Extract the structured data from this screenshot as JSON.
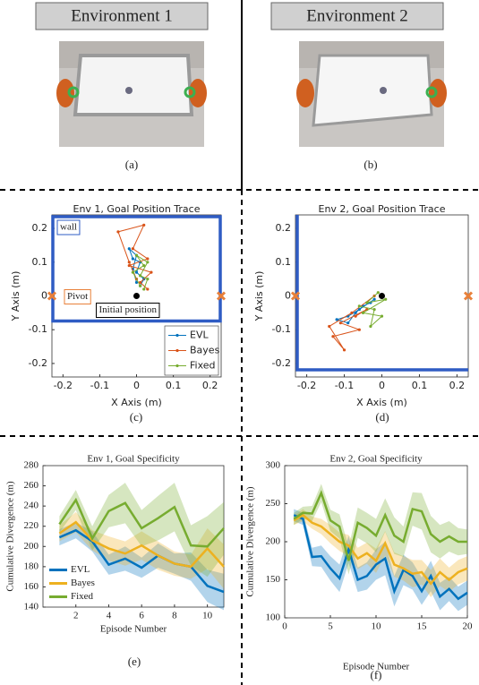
{
  "headers": [
    "Environment 1",
    "Environment 2"
  ],
  "captions": [
    "(a)",
    "(b)",
    "(c)",
    "(d)",
    "(e)",
    "(f)"
  ],
  "chart_data": [
    {
      "type": "line",
      "title": "Env 1, Goal Position Trace",
      "x_label": "X Axis (m)",
      "y_label": "Y Axis (m)",
      "xlim": [
        -0.23,
        0.23
      ],
      "ylim": [
        -0.24,
        0.24
      ],
      "xticks": [
        -0.2,
        -0.1,
        0,
        0.1,
        0.2
      ],
      "yticks": [
        -0.2,
        -0.1,
        0,
        0.1,
        0.2
      ],
      "legend": "lower right",
      "markers_on_lines": true,
      "annotations": [
        "wall",
        "Pivot",
        "Initial position"
      ],
      "points": [
        {
          "x": -0.23,
          "y": 0,
          "color": "#e8803a",
          "shape": "x"
        },
        {
          "x": 0.23,
          "y": 0,
          "color": "#e8803a",
          "shape": "x"
        },
        {
          "x": 0,
          "y": 0,
          "color": "#000000",
          "shape": "dot"
        }
      ],
      "series": [
        {
          "name": "EVL",
          "color": "#0072bd",
          "x": [
            0,
            -0.01,
            0,
            -0.02,
            -0.01,
            0.01,
            0,
            0.02,
            0.01
          ],
          "values": [
            0.04,
            0.08,
            0.12,
            0.14,
            0.11,
            0.1,
            0.07,
            0.05,
            0.03
          ]
        },
        {
          "name": "Bayes",
          "color": "#d95319",
          "x": [
            0,
            -0.02,
            -0.05,
            0.02,
            -0.01,
            0.03,
            -0.02,
            0.04,
            0.01,
            0.03
          ],
          "values": [
            0.05,
            0.1,
            0.19,
            0.21,
            0.14,
            0.11,
            0.09,
            0.07,
            0.04,
            0.02
          ]
        },
        {
          "name": "Fixed",
          "color": "#77ac30",
          "x": [
            0.01,
            -0.01,
            0.02,
            0,
            0.03,
            0.01,
            0.03,
            0.02
          ],
          "values": [
            0.03,
            0.07,
            0.09,
            0.12,
            0.1,
            0.06,
            0.05,
            0.02
          ]
        }
      ]
    },
    {
      "type": "line",
      "title": "Env 2, Goal Position Trace",
      "x_label": "X Axis (m)",
      "y_label": "Y Axis (m)",
      "xlim": [
        -0.23,
        0.23
      ],
      "ylim": [
        -0.24,
        0.24
      ],
      "xticks": [
        -0.2,
        -0.1,
        0,
        0.1,
        0.2
      ],
      "yticks": [
        -0.2,
        -0.1,
        0,
        0.1,
        0.2
      ],
      "markers_on_lines": true,
      "points": [
        {
          "x": -0.23,
          "y": 0,
          "color": "#e8803a",
          "shape": "x"
        },
        {
          "x": 0.23,
          "y": 0,
          "color": "#e8803a",
          "shape": "x"
        },
        {
          "x": 0,
          "y": 0,
          "color": "#000000",
          "shape": "dot"
        }
      ],
      "series": [
        {
          "color": "#0072bd",
          "x": [
            -0.02,
            -0.06,
            -0.09,
            -0.12,
            -0.09,
            -0.07,
            -0.05,
            -0.03
          ],
          "values": [
            -0.01,
            -0.04,
            -0.06,
            -0.07,
            -0.08,
            -0.05,
            -0.03,
            -0.02
          ]
        },
        {
          "color": "#d95319",
          "x": [
            -0.02,
            -0.08,
            -0.14,
            -0.1,
            -0.13,
            -0.06,
            -0.11,
            -0.04,
            -0.07
          ],
          "values": [
            0,
            -0.05,
            -0.09,
            -0.16,
            -0.12,
            -0.1,
            -0.08,
            -0.04,
            -0.06
          ]
        },
        {
          "color": "#77ac30",
          "x": [
            -0.01,
            -0.04,
            0.01,
            -0.05,
            0,
            -0.03,
            -0.02,
            -0.06
          ],
          "values": [
            0.01,
            -0.02,
            -0.01,
            -0.05,
            -0.06,
            -0.09,
            -0.04,
            -0.03
          ]
        }
      ]
    },
    {
      "type": "line",
      "title": "Env 1, Goal Specificity",
      "x_label": "Episode Number",
      "y_label": "Cumulative Divergence (m)",
      "xlim": [
        0,
        11
      ],
      "ylim": [
        140,
        280
      ],
      "xticks": [
        2,
        4,
        6,
        8,
        10
      ],
      "yticks": [
        140,
        160,
        180,
        200,
        220,
        240,
        260,
        280
      ],
      "legend": "lower left",
      "x": [
        1,
        2,
        3,
        4,
        5,
        6,
        7,
        8,
        9,
        10,
        11
      ],
      "series": [
        {
          "name": "EVL",
          "color": "#0072bd",
          "values": [
            209,
            216,
            205,
            182,
            188,
            179,
            191,
            183,
            180,
            161,
            155
          ],
          "band": [
            8,
            8,
            10,
            10,
            12,
            10,
            12,
            10,
            14,
            16,
            18
          ]
        },
        {
          "name": "Bayes",
          "color": "#edb120",
          "values": [
            213,
            224,
            206,
            198,
            193,
            201,
            191,
            183,
            180,
            198,
            180
          ],
          "band": [
            8,
            10,
            10,
            12,
            12,
            14,
            14,
            12,
            12,
            20,
            22
          ]
        },
        {
          "name": "Fixed",
          "color": "#77ac30",
          "values": [
            222,
            246,
            208,
            235,
            243,
            218,
            228,
            239,
            201,
            200,
            218
          ],
          "band": [
            8,
            10,
            12,
            16,
            20,
            18,
            22,
            24,
            20,
            30,
            26
          ]
        }
      ]
    },
    {
      "type": "line",
      "title": "Env 2, Goal Specificity",
      "x_label": "Episode Number",
      "y_label": "Cumulative Divergence (m)",
      "xlim": [
        0,
        20
      ],
      "ylim": [
        100,
        300
      ],
      "xticks": [
        0,
        5,
        10,
        15,
        20
      ],
      "yticks": [
        100,
        150,
        200,
        250,
        300
      ],
      "x": [
        1,
        2,
        3,
        4,
        5,
        6,
        7,
        8,
        9,
        10,
        11,
        12,
        13,
        14,
        15,
        16,
        17,
        18,
        19,
        20
      ],
      "series": [
        {
          "color": "#0072bd",
          "values": [
            235,
            230,
            180,
            181,
            165,
            152,
            190,
            150,
            155,
            170,
            178,
            135,
            163,
            155,
            135,
            155,
            128,
            138,
            125,
            133
          ],
          "band": [
            8,
            8,
            12,
            14,
            16,
            18,
            18,
            16,
            18,
            20,
            22,
            20,
            20,
            18,
            18,
            20,
            18,
            16,
            16,
            16
          ]
        },
        {
          "color": "#edb120",
          "values": [
            228,
            235,
            225,
            220,
            210,
            200,
            195,
            178,
            185,
            175,
            198,
            170,
            165,
            158,
            160,
            145,
            160,
            150,
            160,
            165
          ],
          "band": [
            6,
            8,
            8,
            10,
            12,
            12,
            14,
            14,
            14,
            16,
            16,
            16,
            16,
            18,
            16,
            18,
            18,
            16,
            16,
            16
          ]
        },
        {
          "color": "#77ac30",
          "values": [
            230,
            238,
            237,
            264,
            228,
            220,
            175,
            225,
            218,
            208,
            235,
            208,
            200,
            243,
            240,
            210,
            200,
            207,
            200,
            200
          ],
          "band": [
            8,
            8,
            10,
            12,
            14,
            16,
            18,
            20,
            20,
            22,
            22,
            24,
            20,
            22,
            24,
            24,
            22,
            20,
            18,
            16
          ]
        }
      ]
    }
  ]
}
